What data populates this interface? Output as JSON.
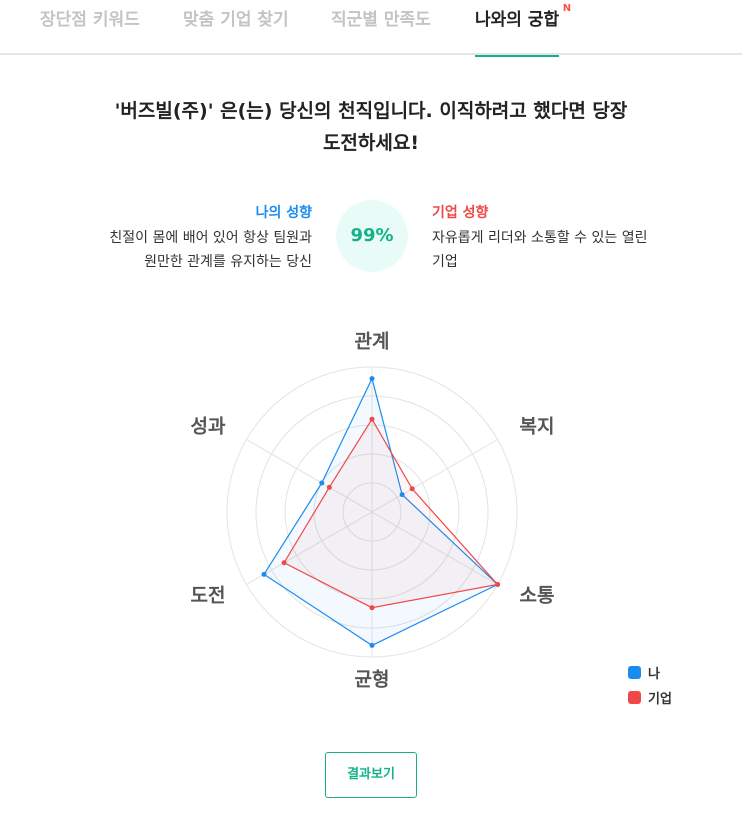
{
  "tabs": [
    {
      "label": "장단점 키워드",
      "active": false
    },
    {
      "label": "맞춤 기업 찾기",
      "active": false
    },
    {
      "label": "직군별 만족도",
      "active": false
    },
    {
      "label": "나와의 궁합",
      "active": true,
      "badge": "N"
    }
  ],
  "headline": {
    "line1": "'버즈빌(주)' 은(는) 당신의 천직입니다. 이직하려고 했다면 당장",
    "line2": "도전하세요!"
  },
  "mine": {
    "title": "나의 성향",
    "desc_line1": "친절이 몸에 배어 있어 항상 팀원과",
    "desc_line2": "원만한 관계를 유지하는 당신"
  },
  "score": "99%",
  "company": {
    "title": "기업 성향",
    "desc_line1": "자유롭게 리더와 소통할 수 있는 열린",
    "desc_line2": "기업"
  },
  "chart_data": {
    "type": "radar",
    "axes": [
      "관계",
      "복지",
      "소통",
      "균형",
      "도전",
      "성과"
    ],
    "rmax": 5,
    "rings": 5,
    "series": [
      {
        "name": "나",
        "color": "#1a8cf0",
        "values": [
          4.6,
          1.2,
          5.0,
          4.6,
          4.3,
          2.0
        ]
      },
      {
        "name": "기업",
        "color": "#f04848",
        "values": [
          3.2,
          1.6,
          5.0,
          3.3,
          3.5,
          1.7
        ]
      }
    ]
  },
  "legend": [
    {
      "label": "나",
      "color": "#1a8cf0"
    },
    {
      "label": "기업",
      "color": "#f04848"
    }
  ],
  "result_button": "결과보기"
}
